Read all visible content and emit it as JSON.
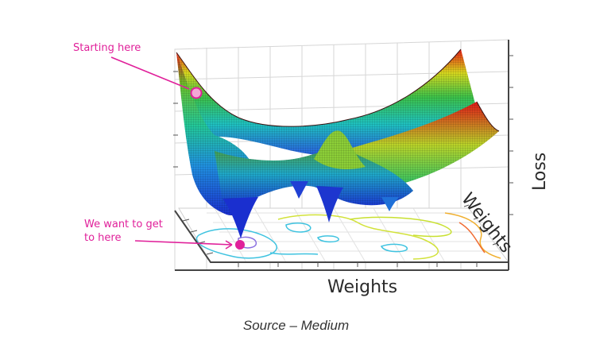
{
  "annotations": {
    "start": "Starting here",
    "goal_line1": "We want to get",
    "goal_line2": "to here"
  },
  "axes": {
    "z_label": "Loss",
    "y_label": "Weights",
    "x_label": "Weights"
  },
  "caption": "Source – Medium",
  "colors": {
    "annotation": "#e0209a",
    "colormap_low": "#1f3fcf",
    "colormap_mid": "#22c060",
    "colormap_high": "#e31b1b"
  }
}
